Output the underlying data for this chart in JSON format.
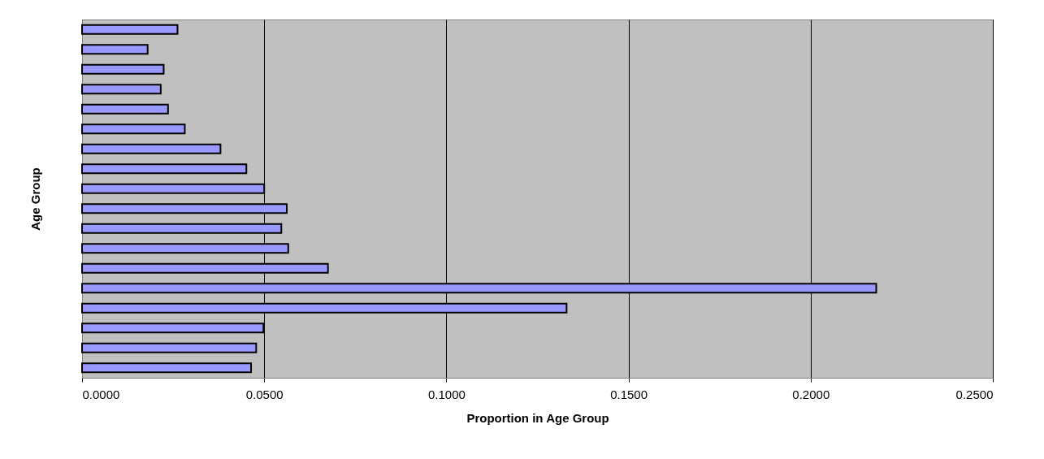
{
  "chart_data": {
    "type": "bar",
    "orientation": "horizontal",
    "xlabel": "Proportion in Age Group",
    "ylabel": "Age Group",
    "categories": [
      null,
      null,
      null,
      null,
      null,
      null,
      null,
      null,
      null,
      null,
      null,
      null,
      null,
      null,
      null,
      null,
      null,
      null
    ],
    "values": [
      0.0262,
      0.018,
      0.0224,
      0.0216,
      0.0236,
      0.0282,
      0.038,
      0.0451,
      0.05,
      0.0562,
      0.0547,
      0.0566,
      0.0675,
      0.218,
      0.133,
      0.0498,
      0.0478,
      0.0464
    ],
    "color": "#9999ff",
    "xlim": [
      0,
      0.25
    ],
    "xticks": [
      {
        "value": 0,
        "label": "0.0000"
      },
      {
        "value": 0.05,
        "label": "0.0500"
      },
      {
        "value": 0.1,
        "label": "0.1000"
      },
      {
        "value": 0.15,
        "label": "0.1500"
      },
      {
        "value": 0.2,
        "label": "0.2000"
      },
      {
        "value": 0.25,
        "label": "0.2500"
      }
    ],
    "grid": "x"
  }
}
